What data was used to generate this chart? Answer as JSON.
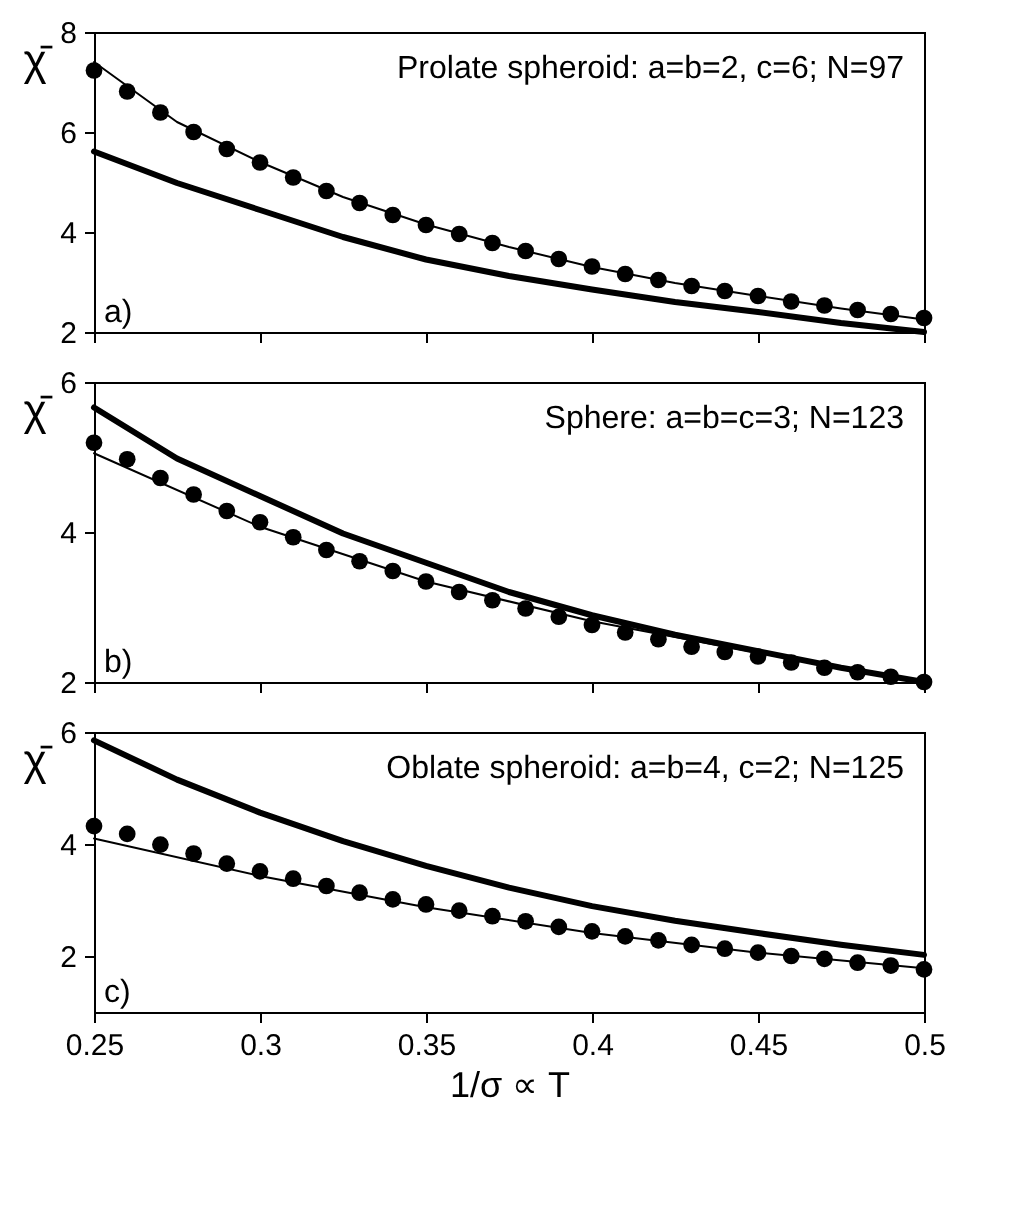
{
  "chart_data": [
    {
      "type": "line",
      "ylabel": "χ̄",
      "annotations": [
        "Prolate spheroid: a=b=2, c=6; N=97",
        "a)"
      ],
      "xlim": [
        0.25,
        0.5
      ],
      "xticks": [
        0.25,
        0.3,
        0.35,
        0.4,
        0.45,
        0.5
      ],
      "ylim": [
        2,
        8
      ],
      "yticks": [
        2,
        4,
        6,
        8
      ],
      "tick_labels": "y",
      "grid": false,
      "legend": false,
      "series": [
        {
          "type": "scatter",
          "marker": "circle",
          "color": "#000000",
          "x": [
            0.25,
            0.26,
            0.27,
            0.28,
            0.29,
            0.3,
            0.31,
            0.32,
            0.33,
            0.34,
            0.35,
            0.36,
            0.37,
            0.38,
            0.39,
            0.4,
            0.41,
            0.42,
            0.43,
            0.44,
            0.45,
            0.46,
            0.47,
            0.48,
            0.49,
            0.5
          ],
          "values": [
            7.23,
            6.81,
            6.39,
            6.0,
            5.66,
            5.39,
            5.09,
            4.82,
            4.58,
            4.34,
            4.14,
            3.96,
            3.78,
            3.62,
            3.46,
            3.31,
            3.16,
            3.04,
            2.92,
            2.82,
            2.72,
            2.61,
            2.53,
            2.44,
            2.36,
            2.28
          ]
        },
        {
          "line_style": "solid",
          "color": "#000000",
          "x": [
            0.25,
            0.275,
            0.3,
            0.325,
            0.35,
            0.375,
            0.4,
            0.425,
            0.45,
            0.475,
            0.5
          ],
          "values": [
            7.4,
            6.2,
            5.4,
            4.7,
            4.15,
            3.7,
            3.3,
            2.98,
            2.72,
            2.47,
            2.25
          ]
        },
        {
          "line_style": "solid",
          "color": "#000000",
          "x": [
            0.25,
            0.275,
            0.3,
            0.325,
            0.35,
            0.375,
            0.4,
            0.425,
            0.45,
            0.475,
            0.5
          ],
          "values": [
            5.61,
            4.98,
            4.44,
            3.9,
            3.45,
            3.12,
            2.85,
            2.6,
            2.4,
            2.18,
            2.0
          ]
        }
      ]
    },
    {
      "type": "line",
      "ylabel": "χ̄",
      "annotations": [
        "Sphere: a=b=c=3; N=123",
        "b)"
      ],
      "xlim": [
        0.25,
        0.5
      ],
      "xticks": [
        0.25,
        0.3,
        0.35,
        0.4,
        0.45,
        0.5
      ],
      "ylim": [
        2,
        6
      ],
      "yticks": [
        2,
        4,
        6
      ],
      "tick_labels": "y",
      "grid": false,
      "legend": false,
      "series": [
        {
          "type": "scatter",
          "marker": "circle",
          "color": "#000000",
          "x": [
            0.25,
            0.26,
            0.27,
            0.28,
            0.29,
            0.3,
            0.31,
            0.32,
            0.33,
            0.34,
            0.35,
            0.36,
            0.37,
            0.38,
            0.39,
            0.4,
            0.41,
            0.42,
            0.43,
            0.44,
            0.45,
            0.46,
            0.47,
            0.48,
            0.49,
            0.5
          ],
          "values": [
            5.19,
            4.97,
            4.72,
            4.5,
            4.28,
            4.13,
            3.93,
            3.76,
            3.61,
            3.48,
            3.34,
            3.2,
            3.09,
            2.98,
            2.87,
            2.76,
            2.66,
            2.57,
            2.47,
            2.4,
            2.34,
            2.26,
            2.19,
            2.13,
            2.07,
            2.0
          ]
        },
        {
          "line_style": "solid",
          "color": "#000000",
          "x": [
            0.25,
            0.3,
            0.35,
            0.4,
            0.45,
            0.5
          ],
          "values": [
            5.05,
            4.07,
            3.34,
            2.81,
            2.39,
            2.0
          ]
        },
        {
          "line_style": "solid",
          "color": "#000000",
          "x": [
            0.25,
            0.275,
            0.3,
            0.325,
            0.35,
            0.375,
            0.4,
            0.425,
            0.45,
            0.475,
            0.5
          ],
          "values": [
            5.66,
            4.98,
            4.48,
            3.98,
            3.59,
            3.2,
            2.89,
            2.63,
            2.41,
            2.19,
            2.0
          ]
        }
      ]
    },
    {
      "type": "line",
      "ylabel": "χ̄",
      "xlabel": "1/σ ∝ T",
      "annotations": [
        "Oblate spheroid: a=b=4, c=2; N=125",
        "c)"
      ],
      "xlim": [
        0.25,
        0.5
      ],
      "xticks": [
        0.25,
        0.3,
        0.35,
        0.4,
        0.45,
        0.5
      ],
      "ylim": [
        1,
        6
      ],
      "yticks": [
        2,
        4,
        6
      ],
      "grid": false,
      "legend": false,
      "series": [
        {
          "type": "scatter",
          "marker": "circle",
          "color": "#000000",
          "x": [
            0.25,
            0.26,
            0.27,
            0.28,
            0.29,
            0.3,
            0.31,
            0.32,
            0.33,
            0.34,
            0.35,
            0.36,
            0.37,
            0.38,
            0.39,
            0.4,
            0.41,
            0.42,
            0.43,
            0.44,
            0.45,
            0.46,
            0.47,
            0.48,
            0.49,
            0.5
          ],
          "values": [
            4.32,
            4.18,
            3.99,
            3.83,
            3.65,
            3.51,
            3.38,
            3.25,
            3.13,
            3.01,
            2.92,
            2.81,
            2.71,
            2.62,
            2.52,
            2.44,
            2.35,
            2.28,
            2.2,
            2.13,
            2.06,
            2.0,
            1.95,
            1.88,
            1.83,
            1.76
          ]
        },
        {
          "line_style": "solid",
          "color": "#000000",
          "x": [
            0.25,
            0.3,
            0.35,
            0.4,
            0.45,
            0.5
          ],
          "values": [
            4.1,
            3.43,
            2.87,
            2.41,
            2.06,
            1.78
          ]
        },
        {
          "line_style": "solid",
          "color": "#000000",
          "x": [
            0.25,
            0.275,
            0.3,
            0.325,
            0.35,
            0.375,
            0.4,
            0.425,
            0.45,
            0.475,
            0.5
          ],
          "values": [
            5.85,
            5.15,
            4.56,
            4.05,
            3.61,
            3.22,
            2.89,
            2.63,
            2.41,
            2.2,
            2.02
          ]
        }
      ]
    }
  ]
}
